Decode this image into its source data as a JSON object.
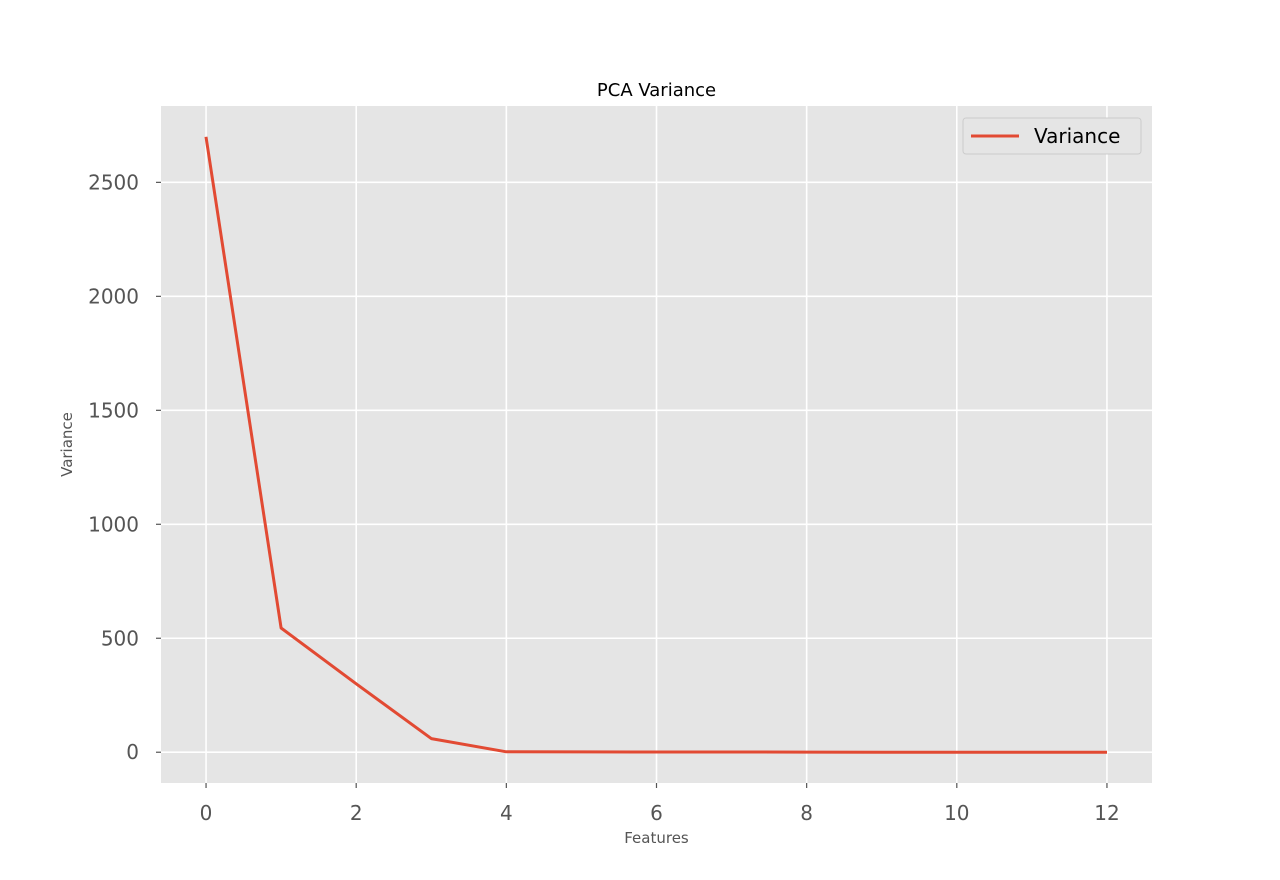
{
  "chart_data": {
    "type": "line",
    "title": "PCA Variance",
    "xlabel": "Features",
    "ylabel": "Variance",
    "x": [
      0,
      1,
      2,
      3,
      4,
      5,
      6,
      7,
      8,
      9,
      10,
      11,
      12
    ],
    "series": [
      {
        "name": "Variance",
        "color": "#E24A33",
        "values": [
          2700,
          545,
          300,
          60,
          2,
          1.5,
          1,
          0.8,
          0.5,
          0.3,
          0.2,
          0.1,
          0.05
        ]
      }
    ],
    "xlim": [
      -0.6,
      12.6
    ],
    "ylim": [
      -135,
      2835
    ],
    "xticks": [
      0,
      2,
      4,
      6,
      8,
      10,
      12
    ],
    "yticks": [
      0,
      500,
      1000,
      1500,
      2000,
      2500
    ],
    "grid": true,
    "legend_position": "top-right",
    "background": "#E5E5E5"
  }
}
